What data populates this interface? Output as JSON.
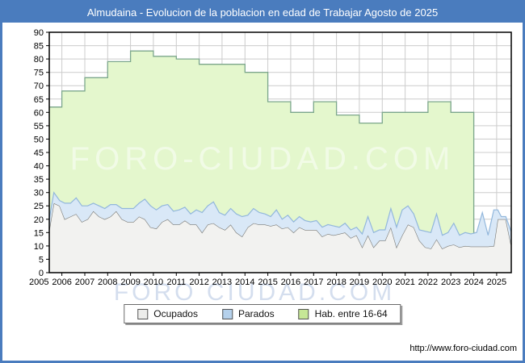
{
  "window": {
    "title": "Almudaina - Evolucion de la poblacion en edad de Trabajar Agosto de 2025"
  },
  "watermark": {
    "plot": "FORO-CIUDAD.COM",
    "axis": "FORO CIUDAD.COM"
  },
  "footer": {
    "url": "http://www.foro-ciudad.com"
  },
  "legend": {
    "items": [
      {
        "label": "Ocupados",
        "swatch": "#ededeb"
      },
      {
        "label": "Parados",
        "swatch": "#b5d1ec"
      },
      {
        "label": "Hab. entre 16-64",
        "swatch": "#c6e796"
      }
    ]
  },
  "chart_data": {
    "type": "area",
    "title": "Almudaina - Evolucion de la poblacion en edad de Trabajar Agosto de 2025",
    "xlabel": "",
    "ylabel": "",
    "ylim": [
      0,
      90
    ],
    "ytick_step": 5,
    "xticks": [
      2005,
      2006,
      2007,
      2008,
      2009,
      2010,
      2011,
      2012,
      2013,
      2014,
      2015,
      2016,
      2017,
      2018,
      2019,
      2020,
      2021,
      2022,
      2023,
      2024,
      2025
    ],
    "grid": true,
    "legend_position": "bottom-center",
    "colors": {
      "frame_blue": "#4a7cbe",
      "grid": "#cccccc",
      "plot_border": "#000000"
    },
    "series": [
      {
        "name": "Hab. entre 16-64",
        "type": "step-area-annual",
        "fill": "#e4f7cd",
        "line": "#7ca78c",
        "years": [
          2005,
          2006,
          2007,
          2008,
          2009,
          2010,
          2011,
          2012,
          2013,
          2014,
          2015,
          2016,
          2017,
          2018,
          2019,
          2020,
          2021,
          2022,
          2023
        ],
        "values": [
          62,
          68,
          73,
          79,
          83,
          81,
          80,
          78,
          78,
          75,
          64,
          60,
          64,
          59,
          56,
          60,
          60,
          64,
          60
        ]
      },
      {
        "name": "Ocupados",
        "type": "area",
        "fill": "#f2f2f0",
        "line": "#7a7a76",
        "x": [
          2005.45,
          2005.65,
          2005.9,
          2006.125,
          2006.375,
          2006.625,
          2006.875,
          2007.125,
          2007.375,
          2007.625,
          2007.875,
          2008.125,
          2008.375,
          2008.625,
          2008.875,
          2009.125,
          2009.375,
          2009.625,
          2009.875,
          2010.125,
          2010.375,
          2010.625,
          2010.875,
          2011.125,
          2011.375,
          2011.625,
          2011.875,
          2012.125,
          2012.375,
          2012.625,
          2012.875,
          2013.125,
          2013.375,
          2013.625,
          2013.875,
          2014.125,
          2014.375,
          2014.625,
          2014.875,
          2015.125,
          2015.375,
          2015.625,
          2015.875,
          2016.125,
          2016.375,
          2016.625,
          2016.875,
          2017.125,
          2017.375,
          2017.625,
          2017.875,
          2018.125,
          2018.375,
          2018.625,
          2018.875,
          2019.125,
          2019.375,
          2019.625,
          2019.875,
          2020.125,
          2020.375,
          2020.625,
          2020.875,
          2021.125,
          2021.375,
          2021.625,
          2021.875,
          2022.125,
          2022.375,
          2022.625,
          2022.875,
          2023.125,
          2023.375,
          2023.625,
          2023.875,
          2024.125,
          2024.375,
          2024.625,
          2024.875,
          2025.05,
          2025.2,
          2025.4,
          2025.63
        ],
        "values": [
          16,
          26,
          25,
          20,
          21,
          22,
          19,
          20,
          23,
          21,
          20,
          21,
          23,
          20,
          19,
          19,
          21,
          20,
          17,
          16.5,
          19,
          20,
          18,
          18,
          19.5,
          18,
          18,
          15,
          18,
          18.5,
          17,
          16,
          18,
          15,
          13.5,
          17,
          18.5,
          18,
          18,
          17.5,
          18,
          16.5,
          17,
          15,
          17,
          16,
          16,
          16,
          13.5,
          14.5,
          14,
          14.5,
          15,
          13,
          14,
          9.5,
          14,
          9.5,
          12,
          12,
          17,
          9.5,
          14,
          18,
          17,
          12,
          9.5,
          9,
          12.5,
          9,
          10,
          10.5,
          9.5,
          10,
          9.8,
          9.8,
          9.8,
          9.8,
          10,
          20,
          20,
          20,
          10.5
        ]
      },
      {
        "name": "Parados",
        "type": "area-stacked-on-ocupados",
        "fill": "#d9e8f7",
        "line": "#92b7dc",
        "x": "same-as-ocupados",
        "values": [
          4,
          4,
          2,
          6,
          5,
          6,
          6,
          5,
          3,
          4,
          4,
          4.5,
          2.5,
          4,
          5,
          5,
          5,
          7.5,
          8,
          7,
          6,
          5.5,
          5,
          5.5,
          5,
          4,
          5.5,
          7.5,
          7,
          8,
          5.5,
          5.5,
          6,
          7,
          7.5,
          4.5,
          5.5,
          4.5,
          4,
          3.5,
          5.5,
          3.5,
          4.5,
          4,
          4,
          3.5,
          3,
          3.5,
          3.5,
          3.5,
          3.5,
          2.5,
          3.5,
          3,
          3,
          5,
          7,
          5.5,
          4,
          4,
          7,
          7.5,
          9.5,
          7,
          5,
          4,
          6,
          6,
          9.5,
          5,
          5,
          8,
          4.5,
          5,
          4.7,
          5.2,
          12.7,
          4.2,
          13.5,
          3.5,
          1,
          1,
          5
        ]
      }
    ]
  }
}
